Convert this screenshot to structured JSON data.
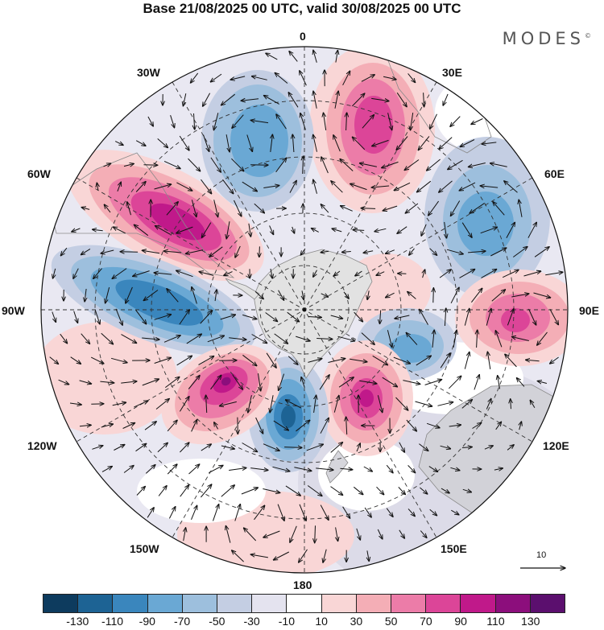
{
  "title": "Base 21/08/2025 00 UTC, valid 30/08/2025 00 UTC",
  "brand": "MODES",
  "brand_mark": "©",
  "longitude_labels": {
    "lon_0": "0",
    "lon_30e": "30E",
    "lon_60e": "60E",
    "lon_90e": "90E",
    "lon_120e": "120E",
    "lon_150e": "150E",
    "lon_180": "180",
    "lon_150w": "150W",
    "lon_120w": "120W",
    "lon_90w": "90W",
    "lon_60w": "60W",
    "lon_30w": "30W"
  },
  "vector_scale_label": "10",
  "colorbar": {
    "colors": [
      "#0d3b5e",
      "#1d6394",
      "#3a86bd",
      "#6aa8d4",
      "#9dbfdd",
      "#c4cee3",
      "#e4e3ef",
      "#ffffff",
      "#f9d6d6",
      "#f4aeb6",
      "#ec7ca8",
      "#dc4598",
      "#c0198a",
      "#8c0e7c",
      "#5b0f6e"
    ],
    "ticks": [
      "-130",
      "-110",
      "-90",
      "-70",
      "-50",
      "-30",
      "-10",
      "10",
      "30",
      "50",
      "70",
      "90",
      "110",
      "130"
    ]
  },
  "anomaly_centers": [
    {
      "name": "pos-north-30e",
      "color": "#dc4598"
    },
    {
      "name": "neg-north-15w",
      "color": "#6aa8d4"
    },
    {
      "name": "pos-west-55w",
      "color": "#c0198a"
    },
    {
      "name": "neg-west-90w",
      "color": "#3a86bd"
    },
    {
      "name": "neg-east-60e",
      "color": "#6aa8d4"
    },
    {
      "name": "pos-east-90e",
      "color": "#dc4598"
    },
    {
      "name": "neg-inner-110e",
      "color": "#6aa8d4"
    },
    {
      "name": "pos-south-155e",
      "color": "#c0198a"
    },
    {
      "name": "neg-south-180",
      "color": "#1d6394"
    },
    {
      "name": "pos-south-155w",
      "color": "#8c0e7c"
    },
    {
      "name": "pos-outer-180",
      "color": "#f9d6d6"
    }
  ]
}
